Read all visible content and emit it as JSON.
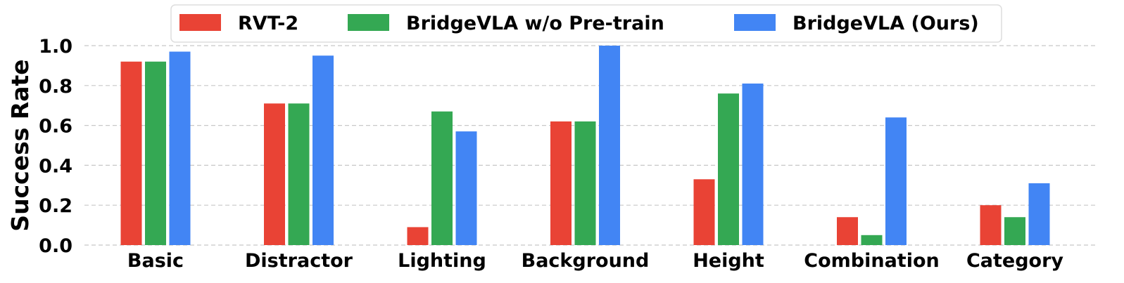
{
  "chart_data": {
    "type": "bar",
    "title": "",
    "xlabel": "",
    "ylabel": "Success Rate",
    "ylim": [
      0,
      1.0
    ],
    "yticks": [
      "0.0",
      "0.2",
      "0.4",
      "0.6",
      "0.8",
      "1.0"
    ],
    "grid": "horizontal dashed",
    "legend_position": "top-center",
    "categories": [
      "Basic",
      "Distractor",
      "Lighting",
      "Background",
      "Height",
      "Combination",
      "Category"
    ],
    "series": [
      {
        "name": "RVT-2",
        "color": "#e94335",
        "values": [
          0.92,
          0.71,
          0.09,
          0.62,
          0.33,
          0.14,
          0.2
        ]
      },
      {
        "name": "BridgeVLA w/o Pre-train",
        "color": "#34a853",
        "values": [
          0.92,
          0.71,
          0.67,
          0.62,
          0.76,
          0.05,
          0.14
        ]
      },
      {
        "name": "BridgeVLA (Ours)",
        "color": "#4285f4",
        "values": [
          0.97,
          0.95,
          0.57,
          1.0,
          0.81,
          0.64,
          0.31
        ]
      }
    ]
  }
}
